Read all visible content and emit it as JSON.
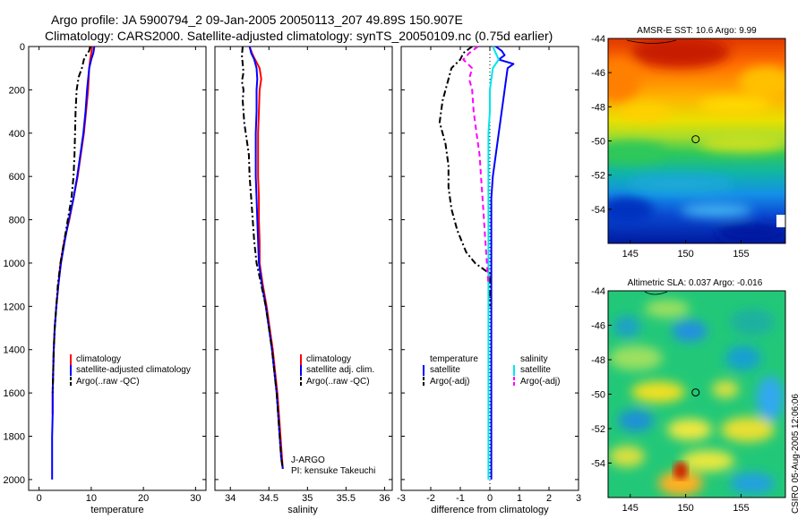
{
  "header": {
    "line1": "Argo profile: JA 5900794_2 09-Jan-2005 20050113_207 49.89S 150.907E",
    "line2": "Climatology: CARS2000. Satellite-adjusted climatology: synTS_20050109.nc (0.75d earlier)"
  },
  "side_text": "CSIRO 05-Aug-2005 12:06:06",
  "colors": {
    "red": "#ff0000",
    "blue": "#0000ff",
    "black": "#000000",
    "cyan": "#00e5ee",
    "magenta": "#ff00ff"
  },
  "chart_data": [
    {
      "type": "line",
      "name": "temperature-profile",
      "xlabel": "temperature",
      "xlim": [
        -2,
        32
      ],
      "ylim": [
        0,
        2050
      ],
      "xticks": [
        0,
        10,
        20,
        30
      ],
      "yticks": [
        0,
        200,
        400,
        600,
        800,
        1000,
        1200,
        1400,
        1600,
        1800,
        2000
      ],
      "legend": [
        "climatology",
        "satellite-adjusted climatology",
        "Argo(..raw -QC)"
      ],
      "series": [
        {
          "name": "climatology",
          "color": "red",
          "dash": "solid",
          "points": [
            [
              10.2,
              0
            ],
            [
              10.0,
              30
            ],
            [
              9.8,
              60
            ],
            [
              9.6,
              100
            ],
            [
              9.4,
              200
            ],
            [
              9.0,
              300
            ],
            [
              8.6,
              400
            ],
            [
              8.0,
              500
            ],
            [
              7.4,
              600
            ],
            [
              6.6,
              700
            ],
            [
              5.8,
              800
            ],
            [
              4.8,
              900
            ],
            [
              4.1,
              1000
            ],
            [
              3.7,
              1100
            ],
            [
              3.3,
              1200
            ],
            [
              3.0,
              1300
            ],
            [
              2.8,
              1400
            ],
            [
              2.7,
              1500
            ],
            [
              2.6,
              1600
            ],
            [
              2.6,
              1700
            ]
          ]
        },
        {
          "name": "satellite-adjusted climatology",
          "color": "blue",
          "dash": "solid",
          "points": [
            [
              10.6,
              0
            ],
            [
              10.4,
              30
            ],
            [
              10.0,
              60
            ],
            [
              9.6,
              100
            ],
            [
              9.2,
              200
            ],
            [
              8.9,
              300
            ],
            [
              8.5,
              400
            ],
            [
              7.9,
              500
            ],
            [
              7.3,
              600
            ],
            [
              6.6,
              700
            ],
            [
              5.7,
              800
            ],
            [
              4.9,
              900
            ],
            [
              4.2,
              1000
            ],
            [
              3.7,
              1100
            ],
            [
              3.3,
              1200
            ],
            [
              3.0,
              1300
            ],
            [
              2.8,
              1400
            ],
            [
              2.7,
              1500
            ],
            [
              2.6,
              1600
            ],
            [
              2.6,
              1700
            ],
            [
              2.5,
              1800
            ],
            [
              2.5,
              1900
            ],
            [
              2.5,
              2000
            ]
          ]
        },
        {
          "name": "Argo(..raw -QC)",
          "color": "black",
          "dash": "dashdot",
          "points": [
            [
              9.8,
              0
            ],
            [
              9.6,
              20
            ],
            [
              9.0,
              40
            ],
            [
              8.6,
              60
            ],
            [
              8.2,
              100
            ],
            [
              7.6,
              140
            ],
            [
              7.2,
              200
            ],
            [
              7.0,
              300
            ],
            [
              6.9,
              400
            ],
            [
              6.8,
              500
            ],
            [
              6.6,
              600
            ],
            [
              6.2,
              700
            ],
            [
              5.5,
              800
            ],
            [
              4.8,
              900
            ],
            [
              4.1,
              1000
            ],
            [
              3.6,
              1100
            ],
            [
              3.3,
              1200
            ],
            [
              3.0,
              1300
            ],
            [
              2.8,
              1400
            ],
            [
              2.7,
              1500
            ],
            [
              2.6,
              1600
            ]
          ]
        }
      ]
    },
    {
      "type": "line",
      "name": "salinity-profile",
      "xlabel": "salinity",
      "xlim": [
        33.8,
        36.1
      ],
      "ylim": [
        0,
        2050
      ],
      "xticks": [
        34,
        34.5,
        35,
        35.5,
        36
      ],
      "legend": [
        "climatology",
        "satellite adj. clim.",
        "Argo(..raw -QC)"
      ],
      "annotations": [
        "J-ARGO",
        "PI: kensuke Takeuchi"
      ],
      "series": [
        {
          "name": "climatology",
          "color": "red",
          "dash": "solid",
          "points": [
            [
              34.25,
              0
            ],
            [
              34.28,
              30
            ],
            [
              34.32,
              60
            ],
            [
              34.38,
              100
            ],
            [
              34.4,
              150
            ],
            [
              34.38,
              200
            ],
            [
              34.37,
              300
            ],
            [
              34.36,
              400
            ],
            [
              34.36,
              500
            ],
            [
              34.36,
              600
            ],
            [
              34.37,
              700
            ],
            [
              34.37,
              800
            ],
            [
              34.38,
              900
            ],
            [
              34.38,
              1000
            ],
            [
              34.42,
              1100
            ],
            [
              34.47,
              1200
            ],
            [
              34.51,
              1300
            ],
            [
              34.55,
              1400
            ],
            [
              34.58,
              1500
            ],
            [
              34.61,
              1600
            ],
            [
              34.63,
              1700
            ],
            [
              34.65,
              1800
            ],
            [
              34.67,
              1900
            ],
            [
              34.68,
              1950
            ]
          ]
        },
        {
          "name": "satellite adj. clim.",
          "color": "blue",
          "dash": "solid",
          "points": [
            [
              34.25,
              0
            ],
            [
              34.27,
              30
            ],
            [
              34.31,
              60
            ],
            [
              34.34,
              100
            ],
            [
              34.35,
              150
            ],
            [
              34.34,
              200
            ],
            [
              34.34,
              300
            ],
            [
              34.33,
              400
            ],
            [
              34.33,
              500
            ],
            [
              34.33,
              600
            ],
            [
              34.34,
              700
            ],
            [
              34.35,
              800
            ],
            [
              34.36,
              900
            ],
            [
              34.37,
              1000
            ],
            [
              34.41,
              1100
            ],
            [
              34.46,
              1200
            ],
            [
              34.5,
              1300
            ],
            [
              34.54,
              1400
            ],
            [
              34.57,
              1500
            ],
            [
              34.6,
              1600
            ],
            [
              34.62,
              1700
            ],
            [
              34.64,
              1800
            ],
            [
              34.66,
              1900
            ],
            [
              34.68,
              1950
            ]
          ]
        },
        {
          "name": "Argo(..raw -QC)",
          "color": "black",
          "dash": "dashdot",
          "points": [
            [
              34.16,
              0
            ],
            [
              34.15,
              40
            ],
            [
              34.16,
              80
            ],
            [
              34.17,
              120
            ],
            [
              34.15,
              160
            ],
            [
              34.17,
              200
            ],
            [
              34.16,
              250
            ],
            [
              34.17,
              300
            ],
            [
              34.18,
              350
            ],
            [
              34.2,
              400
            ],
            [
              34.22,
              450
            ],
            [
              34.24,
              500
            ],
            [
              34.25,
              600
            ],
            [
              34.27,
              700
            ],
            [
              34.29,
              800
            ],
            [
              34.31,
              900
            ],
            [
              34.34,
              1000
            ],
            [
              34.4,
              1100
            ],
            [
              34.46,
              1200
            ],
            [
              34.5,
              1300
            ],
            [
              34.54,
              1400
            ],
            [
              34.57,
              1500
            ],
            [
              34.6,
              1600
            ],
            [
              34.62,
              1700
            ],
            [
              34.64,
              1800
            ],
            [
              34.66,
              1900
            ],
            [
              34.68,
              1950
            ]
          ]
        }
      ]
    },
    {
      "type": "line",
      "name": "difference-profile",
      "xlabel": "difference from climatology",
      "xlim": [
        -3,
        3
      ],
      "ylim": [
        0,
        2050
      ],
      "xticks": [
        -3,
        -2,
        -1,
        0,
        1,
        2,
        3
      ],
      "legend_temperature": {
        "title": "temperature",
        "items": [
          "satellite",
          "Argo(-adj)"
        ]
      },
      "legend_salinity": {
        "title": "salinity",
        "items": [
          "satellite",
          "Argo(-adj)"
        ]
      },
      "series": [
        {
          "name": "temperature satellite",
          "color": "blue",
          "dash": "solid",
          "points": [
            [
              0.2,
              0
            ],
            [
              0.4,
              20
            ],
            [
              0.5,
              40
            ],
            [
              0.3,
              60
            ],
            [
              0.8,
              80
            ],
            [
              0.6,
              100
            ],
            [
              0.5,
              200
            ],
            [
              0.4,
              300
            ],
            [
              0.3,
              400
            ],
            [
              0.2,
              500
            ],
            [
              0.1,
              600
            ],
            [
              0.05,
              700
            ],
            [
              0.05,
              800
            ],
            [
              0.05,
              900
            ],
            [
              0.05,
              1000
            ],
            [
              0.05,
              1200
            ],
            [
              0.05,
              1400
            ],
            [
              0.05,
              1600
            ],
            [
              0.05,
              1800
            ],
            [
              0.05,
              2000
            ]
          ]
        },
        {
          "name": "temperature Argo(-adj)",
          "color": "black",
          "dash": "dashdot",
          "points": [
            [
              -0.6,
              0
            ],
            [
              -0.9,
              30
            ],
            [
              -1.0,
              60
            ],
            [
              -1.3,
              100
            ],
            [
              -1.4,
              150
            ],
            [
              -1.6,
              250
            ],
            [
              -1.7,
              350
            ],
            [
              -1.5,
              450
            ],
            [
              -1.4,
              550
            ],
            [
              -1.4,
              650
            ],
            [
              -1.3,
              750
            ],
            [
              -1.1,
              850
            ],
            [
              -0.8,
              950
            ],
            [
              -0.5,
              1000
            ],
            [
              0.0,
              1050
            ],
            [
              0.0,
              1100
            ],
            [
              0.0,
              1200
            ]
          ]
        },
        {
          "name": "salinity satellite",
          "color": "cyan",
          "dash": "solid",
          "points": [
            [
              0.1,
              0
            ],
            [
              0.2,
              30
            ],
            [
              0.3,
              60
            ],
            [
              0.1,
              100
            ],
            [
              0.0,
              200
            ],
            [
              0.0,
              300
            ],
            [
              -0.05,
              400
            ],
            [
              -0.05,
              500
            ],
            [
              -0.05,
              600
            ],
            [
              -0.05,
              700
            ],
            [
              -0.05,
              800
            ],
            [
              -0.05,
              900
            ],
            [
              -0.05,
              1000
            ],
            [
              -0.05,
              1200
            ],
            [
              -0.05,
              1400
            ],
            [
              -0.05,
              1600
            ],
            [
              -0.05,
              1800
            ],
            [
              -0.05,
              2000
            ]
          ]
        },
        {
          "name": "salinity Argo(-adj)",
          "color": "magenta",
          "dash": "dash",
          "points": [
            [
              -0.4,
              0
            ],
            [
              -0.7,
              30
            ],
            [
              -0.9,
              60
            ],
            [
              -0.6,
              100
            ],
            [
              -0.7,
              150
            ],
            [
              -0.6,
              200
            ],
            [
              -0.55,
              300
            ],
            [
              -0.45,
              400
            ],
            [
              -0.35,
              500
            ],
            [
              -0.3,
              600
            ],
            [
              -0.25,
              700
            ],
            [
              -0.2,
              800
            ],
            [
              -0.15,
              900
            ],
            [
              -0.1,
              1000
            ],
            [
              -0.05,
              1100
            ]
          ]
        }
      ]
    },
    {
      "type": "heatmap",
      "name": "sst-map",
      "title": "AMSR-E SST: 10.6 Argo: 9.99",
      "xticks": [
        145,
        150,
        155
      ],
      "yticks": [
        -44,
        -46,
        -48,
        -50,
        -52,
        -54
      ],
      "xlim": [
        143,
        159
      ],
      "ylim": [
        -56,
        -44
      ],
      "argo_marker": [
        150.9,
        -49.9
      ]
    },
    {
      "type": "heatmap",
      "name": "sla-map",
      "title": "Altimetric SLA: 0.037 Argo: -0.016",
      "xticks": [
        145,
        150,
        155
      ],
      "yticks": [
        -44,
        -46,
        -48,
        -50,
        -52,
        -54
      ],
      "xlim": [
        143,
        159
      ],
      "ylim": [
        -56,
        -44
      ],
      "argo_marker": [
        150.9,
        -49.9
      ]
    }
  ]
}
